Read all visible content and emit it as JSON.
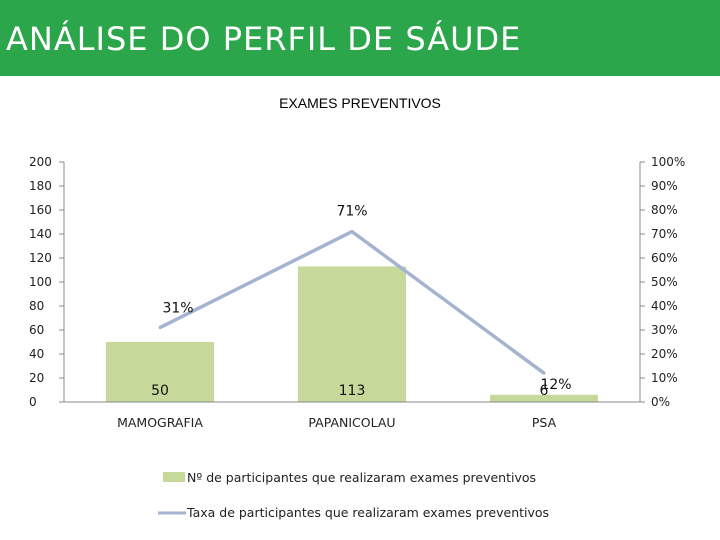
{
  "header": {
    "title": "ANÁLISE DO PERFIL DE SÁUDE",
    "color": "#2ca64a"
  },
  "chart_data": {
    "type": "bar",
    "title": "EXAMES PREVENTIVOS",
    "categories": [
      "MAMOGRAFIA",
      "PAPANICOLAU",
      "PSA"
    ],
    "ylim": [
      0,
      200
    ],
    "y2lim": [
      0,
      100
    ],
    "yticks": [
      "0",
      "20",
      "40",
      "60",
      "80",
      "100",
      "120",
      "140",
      "160",
      "180",
      "200"
    ],
    "y2ticks": [
      "0%",
      "10%",
      "20%",
      "30%",
      "40%",
      "50%",
      "60%",
      "70%",
      "80%",
      "90%",
      "100%"
    ],
    "grid": false,
    "legend_position": "bottom",
    "series": [
      {
        "name": "Nº de participantes que realizaram exames preventivos",
        "type": "bar",
        "axis": "left",
        "values": [
          50,
          113,
          6
        ],
        "labels": [
          "50",
          "113",
          "6"
        ],
        "color": "#c6d99b"
      },
      {
        "name": "Taxa de  participantes que realizaram exames preventivos",
        "type": "line",
        "axis": "right",
        "values": [
          31,
          71,
          12
        ],
        "labels": [
          "31%",
          "71%",
          "12%"
        ],
        "color": "#a3b3d0"
      }
    ]
  }
}
